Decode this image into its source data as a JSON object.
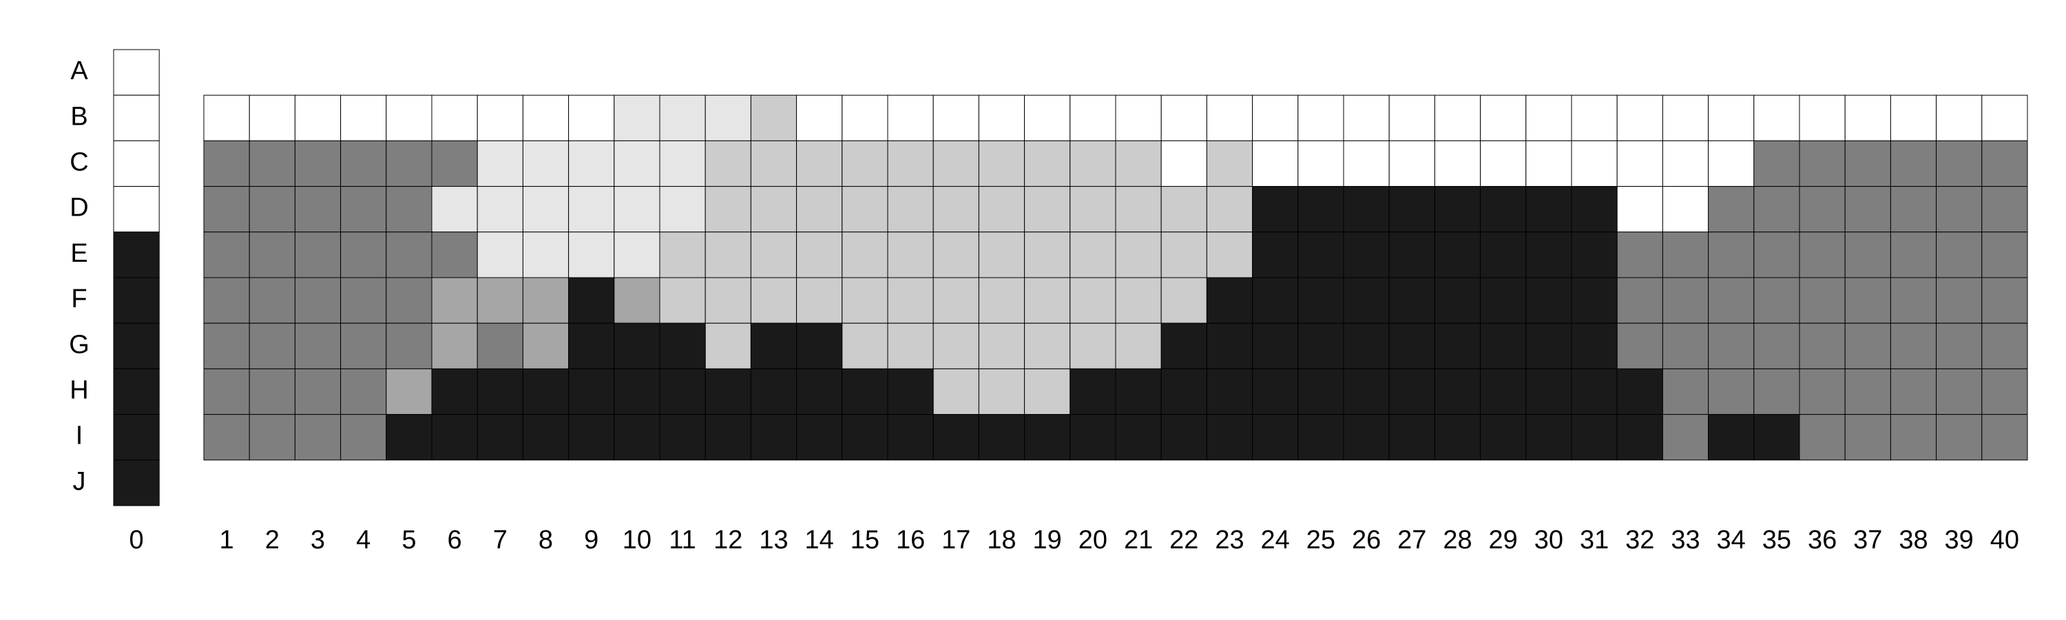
{
  "chart_data": {
    "type": "heatmap",
    "rows": [
      "A",
      "B",
      "C",
      "D",
      "E",
      "F",
      "G",
      "H",
      "I",
      "J"
    ],
    "palette": {
      "0": "#ffffff",
      "1": "#e6e6e6",
      "2": "#cccccc",
      "3": "#a6a6a6",
      "4": "#7f7f7f",
      "5": "#1a1a1a"
    },
    "reference_column": {
      "label": "0",
      "cells": [
        0,
        0,
        0,
        0,
        5,
        5,
        5,
        5,
        5,
        5
      ]
    },
    "columns": [
      "1",
      "2",
      "3",
      "4",
      "5",
      "6",
      "7",
      "8",
      "9",
      "10",
      "11",
      "12",
      "13",
      "14",
      "15",
      "16",
      "17",
      "18",
      "19",
      "20",
      "21",
      "22",
      "23",
      "24",
      "25",
      "26",
      "27",
      "28",
      "29",
      "30",
      "31",
      "32",
      "33",
      "34",
      "35",
      "36",
      "37",
      "38",
      "39",
      "40"
    ],
    "grid_rows": [
      "B",
      "C",
      "D",
      "E",
      "F",
      "G",
      "H",
      "I"
    ],
    "grid": [
      [
        0,
        0,
        0,
        0,
        0,
        0,
        0,
        0,
        0,
        1,
        1,
        1,
        2,
        0,
        0,
        0,
        0,
        0,
        0,
        0,
        0,
        0,
        0,
        0,
        0,
        0,
        0,
        0,
        0,
        0,
        0,
        0,
        0,
        0,
        0,
        0,
        0,
        0,
        0,
        0
      ],
      [
        4,
        4,
        4,
        4,
        4,
        4,
        1,
        1,
        1,
        1,
        1,
        2,
        2,
        2,
        2,
        2,
        2,
        2,
        2,
        2,
        2,
        0,
        2,
        0,
        0,
        0,
        0,
        0,
        0,
        0,
        0,
        0,
        0,
        0,
        4,
        4,
        4,
        4,
        4,
        4
      ],
      [
        4,
        4,
        4,
        4,
        4,
        1,
        1,
        1,
        1,
        1,
        1,
        2,
        2,
        2,
        2,
        2,
        2,
        2,
        2,
        2,
        2,
        2,
        2,
        5,
        5,
        5,
        5,
        5,
        5,
        5,
        5,
        0,
        0,
        4,
        4,
        4,
        4,
        4,
        4,
        4
      ],
      [
        4,
        4,
        4,
        4,
        4,
        4,
        1,
        1,
        1,
        1,
        2,
        2,
        2,
        2,
        2,
        2,
        2,
        2,
        2,
        2,
        2,
        2,
        2,
        5,
        5,
        5,
        5,
        5,
        5,
        5,
        5,
        4,
        4,
        4,
        4,
        4,
        4,
        4,
        4,
        4
      ],
      [
        4,
        4,
        4,
        4,
        4,
        3,
        3,
        3,
        5,
        3,
        2,
        2,
        2,
        2,
        2,
        2,
        2,
        2,
        2,
        2,
        2,
        2,
        5,
        5,
        5,
        5,
        5,
        5,
        5,
        5,
        5,
        4,
        4,
        4,
        4,
        4,
        4,
        4,
        4,
        4
      ],
      [
        4,
        4,
        4,
        4,
        4,
        3,
        4,
        3,
        5,
        5,
        5,
        2,
        5,
        5,
        2,
        2,
        2,
        2,
        2,
        2,
        2,
        5,
        5,
        5,
        5,
        5,
        5,
        5,
        5,
        5,
        5,
        4,
        4,
        4,
        4,
        4,
        4,
        4,
        4,
        4
      ],
      [
        4,
        4,
        4,
        4,
        3,
        5,
        5,
        5,
        5,
        5,
        5,
        5,
        5,
        5,
        5,
        5,
        2,
        2,
        2,
        5,
        5,
        5,
        5,
        5,
        5,
        5,
        5,
        5,
        5,
        5,
        5,
        5,
        4,
        4,
        4,
        4,
        4,
        4,
        4,
        4
      ],
      [
        4,
        4,
        4,
        4,
        5,
        5,
        5,
        5,
        5,
        5,
        5,
        5,
        5,
        5,
        5,
        5,
        5,
        5,
        5,
        5,
        5,
        5,
        5,
        5,
        5,
        5,
        5,
        5,
        5,
        5,
        5,
        5,
        4,
        5,
        5,
        4,
        4,
        4,
        4,
        4
      ]
    ]
  }
}
